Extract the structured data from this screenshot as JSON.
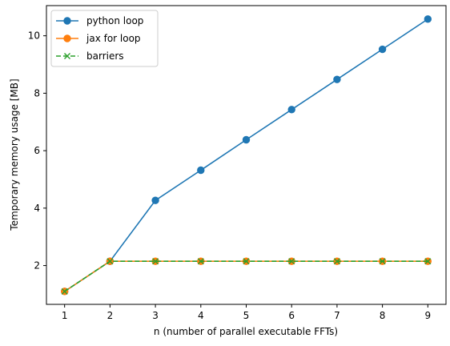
{
  "chart_data": {
    "type": "line",
    "title": "",
    "xlabel": "n (number of parallel executable FFTs)",
    "ylabel": "Temporary memory usage [MB]",
    "x": [
      1,
      2,
      3,
      4,
      5,
      6,
      7,
      8,
      9
    ],
    "xlim": [
      0.6,
      9.4
    ],
    "ylim": [
      0.65,
      11.05
    ],
    "xticks": [
      1,
      2,
      3,
      4,
      5,
      6,
      7,
      8,
      9
    ],
    "yticks": [
      2,
      4,
      6,
      8,
      10
    ],
    "grid": false,
    "legend_position": "top-left",
    "series": [
      {
        "name": "python loop",
        "color": "#1f77b4",
        "line_style": "solid",
        "marker": "circle",
        "values": [
          1.1,
          2.15,
          4.27,
          5.32,
          6.38,
          7.43,
          8.48,
          9.53,
          10.58
        ]
      },
      {
        "name": "jax for loop",
        "color": "#ff7f0e",
        "line_style": "solid",
        "marker": "circle",
        "values": [
          1.1,
          2.15,
          2.15,
          2.15,
          2.15,
          2.15,
          2.15,
          2.15,
          2.15
        ]
      },
      {
        "name": "barriers",
        "color": "#2ca02c",
        "line_style": "dashed",
        "marker": "x",
        "values": [
          1.1,
          2.15,
          2.15,
          2.15,
          2.15,
          2.15,
          2.15,
          2.15,
          2.15
        ]
      }
    ]
  }
}
